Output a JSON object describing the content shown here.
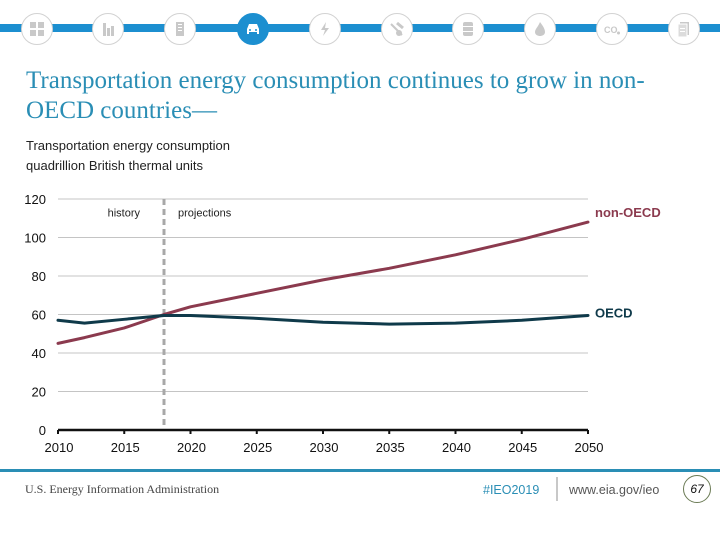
{
  "nav": {
    "icons": [
      {
        "name": "overview-sectors-icon",
        "active": false
      },
      {
        "name": "industrial-icon",
        "active": false
      },
      {
        "name": "buildings-icon",
        "active": false
      },
      {
        "name": "transportation-car-icon",
        "active": true
      },
      {
        "name": "electricity-icon",
        "active": false
      },
      {
        "name": "coal-mining-icon",
        "active": false
      },
      {
        "name": "petroleum-barrel-icon",
        "active": false
      },
      {
        "name": "natural-gas-flame-icon",
        "active": false
      },
      {
        "name": "co2-emissions-icon",
        "active": false
      },
      {
        "name": "documents-icon",
        "active": false
      }
    ],
    "accent": "#1c8fd0"
  },
  "slide": {
    "title": "Transportation energy consumption continues to grow in non-OECD countries—",
    "subtitle_line1": "Transportation energy consumption",
    "subtitle_line2": "quadrillion British thermal units"
  },
  "chart_data": {
    "type": "line",
    "title": "Transportation energy consumption",
    "ylabel": "quadrillion British thermal units",
    "xlabel": "",
    "xlim": [
      2010,
      2050
    ],
    "ylim": [
      0,
      120
    ],
    "x_ticks": [
      "2010",
      "2015",
      "2020",
      "2025",
      "2030",
      "2035",
      "2040",
      "2045",
      "2050"
    ],
    "y_ticks": [
      "0",
      "20",
      "40",
      "60",
      "80",
      "100",
      "120"
    ],
    "grid": true,
    "divider_year": 2018,
    "annotations": {
      "history": "history",
      "projections": "projections"
    },
    "series": [
      {
        "name": "non-OECD",
        "color": "#8b3a4e",
        "x": [
          2010,
          2012,
          2015,
          2018,
          2020,
          2025,
          2030,
          2035,
          2040,
          2045,
          2050
        ],
        "values": [
          45,
          48,
          53,
          60,
          64,
          71,
          78,
          84,
          91,
          99,
          108
        ]
      },
      {
        "name": "OECD",
        "color": "#0f3a4a",
        "x": [
          2010,
          2012,
          2015,
          2018,
          2020,
          2025,
          2030,
          2035,
          2040,
          2045,
          2050
        ],
        "values": [
          57,
          55.5,
          57.5,
          59.5,
          59.5,
          58,
          56,
          55,
          55.5,
          57,
          59.5
        ]
      }
    ]
  },
  "footer": {
    "org": "U.S. Energy Information Administration",
    "hashtag": "#IEO2019",
    "url": "www.eia.gov/ieo",
    "page": "67"
  }
}
